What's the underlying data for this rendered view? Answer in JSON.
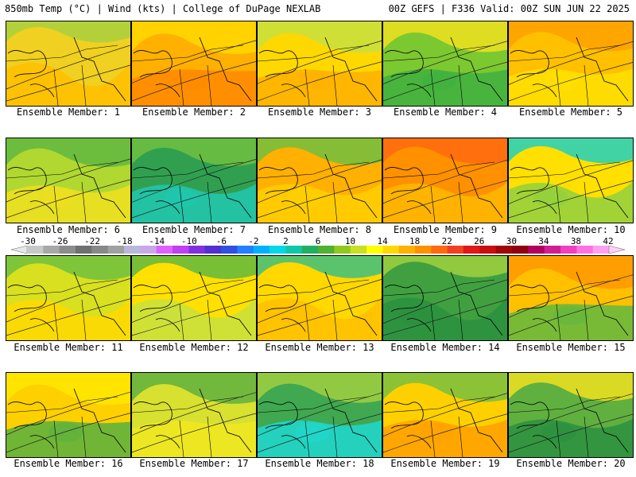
{
  "header": {
    "left": "850mb Temp (°C) | Wind (kts) | College of DuPage NEXLAB",
    "right": "00Z GEFS | F336 Valid: 00Z SUN JUN 22 2025"
  },
  "panels": [
    {
      "label": "Ensemble Member: 1",
      "palette": [
        "#f0d020",
        "#ffc000",
        "#a8d040"
      ]
    },
    {
      "label": "Ensemble Member: 2",
      "palette": [
        "#ffb000",
        "#ff8a00",
        "#ffd800"
      ]
    },
    {
      "label": "Ensemble Member: 3",
      "palette": [
        "#ffd800",
        "#ffb000",
        "#c8e040"
      ]
    },
    {
      "label": "Ensemble Member: 4",
      "palette": [
        "#7cc830",
        "#40b040",
        "#f0e020"
      ]
    },
    {
      "label": "Ensemble Member: 5",
      "palette": [
        "#ffc000",
        "#ffe000",
        "#ffa000"
      ]
    },
    {
      "label": "Ensemble Member: 6",
      "palette": [
        "#b0d830",
        "#f0e020",
        "#60b840"
      ]
    },
    {
      "label": "Ensemble Member: 7",
      "palette": [
        "#30a050",
        "#20c8b0",
        "#70c040"
      ]
    },
    {
      "label": "Ensemble Member: 8",
      "palette": [
        "#ffb000",
        "#ffd000",
        "#70c040"
      ]
    },
    {
      "label": "Ensemble Member: 9",
      "palette": [
        "#ff9000",
        "#ffb800",
        "#ff6a10"
      ]
    },
    {
      "label": "Ensemble Member: 10",
      "palette": [
        "#ffe000",
        "#90d040",
        "#20d0c0"
      ]
    },
    {
      "label": "Ensemble Member: 11",
      "palette": [
        "#d8e020",
        "#ffd800",
        "#70c040"
      ]
    },
    {
      "label": "Ensemble Member: 12",
      "palette": [
        "#ffe000",
        "#c8e040",
        "#60b840"
      ]
    },
    {
      "label": "Ensemble Member: 13",
      "palette": [
        "#ffd800",
        "#ffc000",
        "#40c080"
      ]
    },
    {
      "label": "Ensemble Member: 14",
      "palette": [
        "#40a040",
        "#2c9040",
        "#a0d040"
      ]
    },
    {
      "label": "Ensemble Member: 15",
      "palette": [
        "#ffc000",
        "#60b840",
        "#ff9800"
      ]
    },
    {
      "label": "Ensemble Member: 16",
      "palette": [
        "#ffd000",
        "#58b040",
        "#ffe800"
      ]
    },
    {
      "label": "Ensemble Member: 17",
      "palette": [
        "#d8e030",
        "#f0e820",
        "#60b040"
      ]
    },
    {
      "label": "Ensemble Member: 18",
      "palette": [
        "#40a850",
        "#20d8d0",
        "#a0d040"
      ]
    },
    {
      "label": "Ensemble Member: 19",
      "palette": [
        "#ffd000",
        "#ffa000",
        "#78c040"
      ]
    },
    {
      "label": "Ensemble Member: 20",
      "palette": [
        "#60b040",
        "#2c9040",
        "#f0e020"
      ]
    }
  ],
  "colorbar": {
    "ticks": [
      "-30",
      "-26",
      "-22",
      "-18",
      "-14",
      "-10",
      "-6",
      "-2",
      "2",
      "6",
      "10",
      "14",
      "18",
      "22",
      "26",
      "30",
      "34",
      "38",
      "42"
    ],
    "colors": [
      "#c8c8c8",
      "#a8a8a8",
      "#8c8c8c",
      "#707070",
      "#888888",
      "#a0a0a0",
      "#b8b8d8",
      "#c8a8e8",
      "#e060ff",
      "#c040f0",
      "#8030e0",
      "#5030d0",
      "#3050e0",
      "#2080ff",
      "#00b0ff",
      "#00d8e8",
      "#10c8a8",
      "#20b060",
      "#50b030",
      "#90c820",
      "#c8e020",
      "#ffff00",
      "#ffd800",
      "#ffb000",
      "#ff9000",
      "#ff6a10",
      "#f04020",
      "#e01818",
      "#c81010",
      "#a00808",
      "#900010",
      "#b00060",
      "#d02090",
      "#f040c0",
      "#ff70e0",
      "#ff9ff0"
    ]
  }
}
